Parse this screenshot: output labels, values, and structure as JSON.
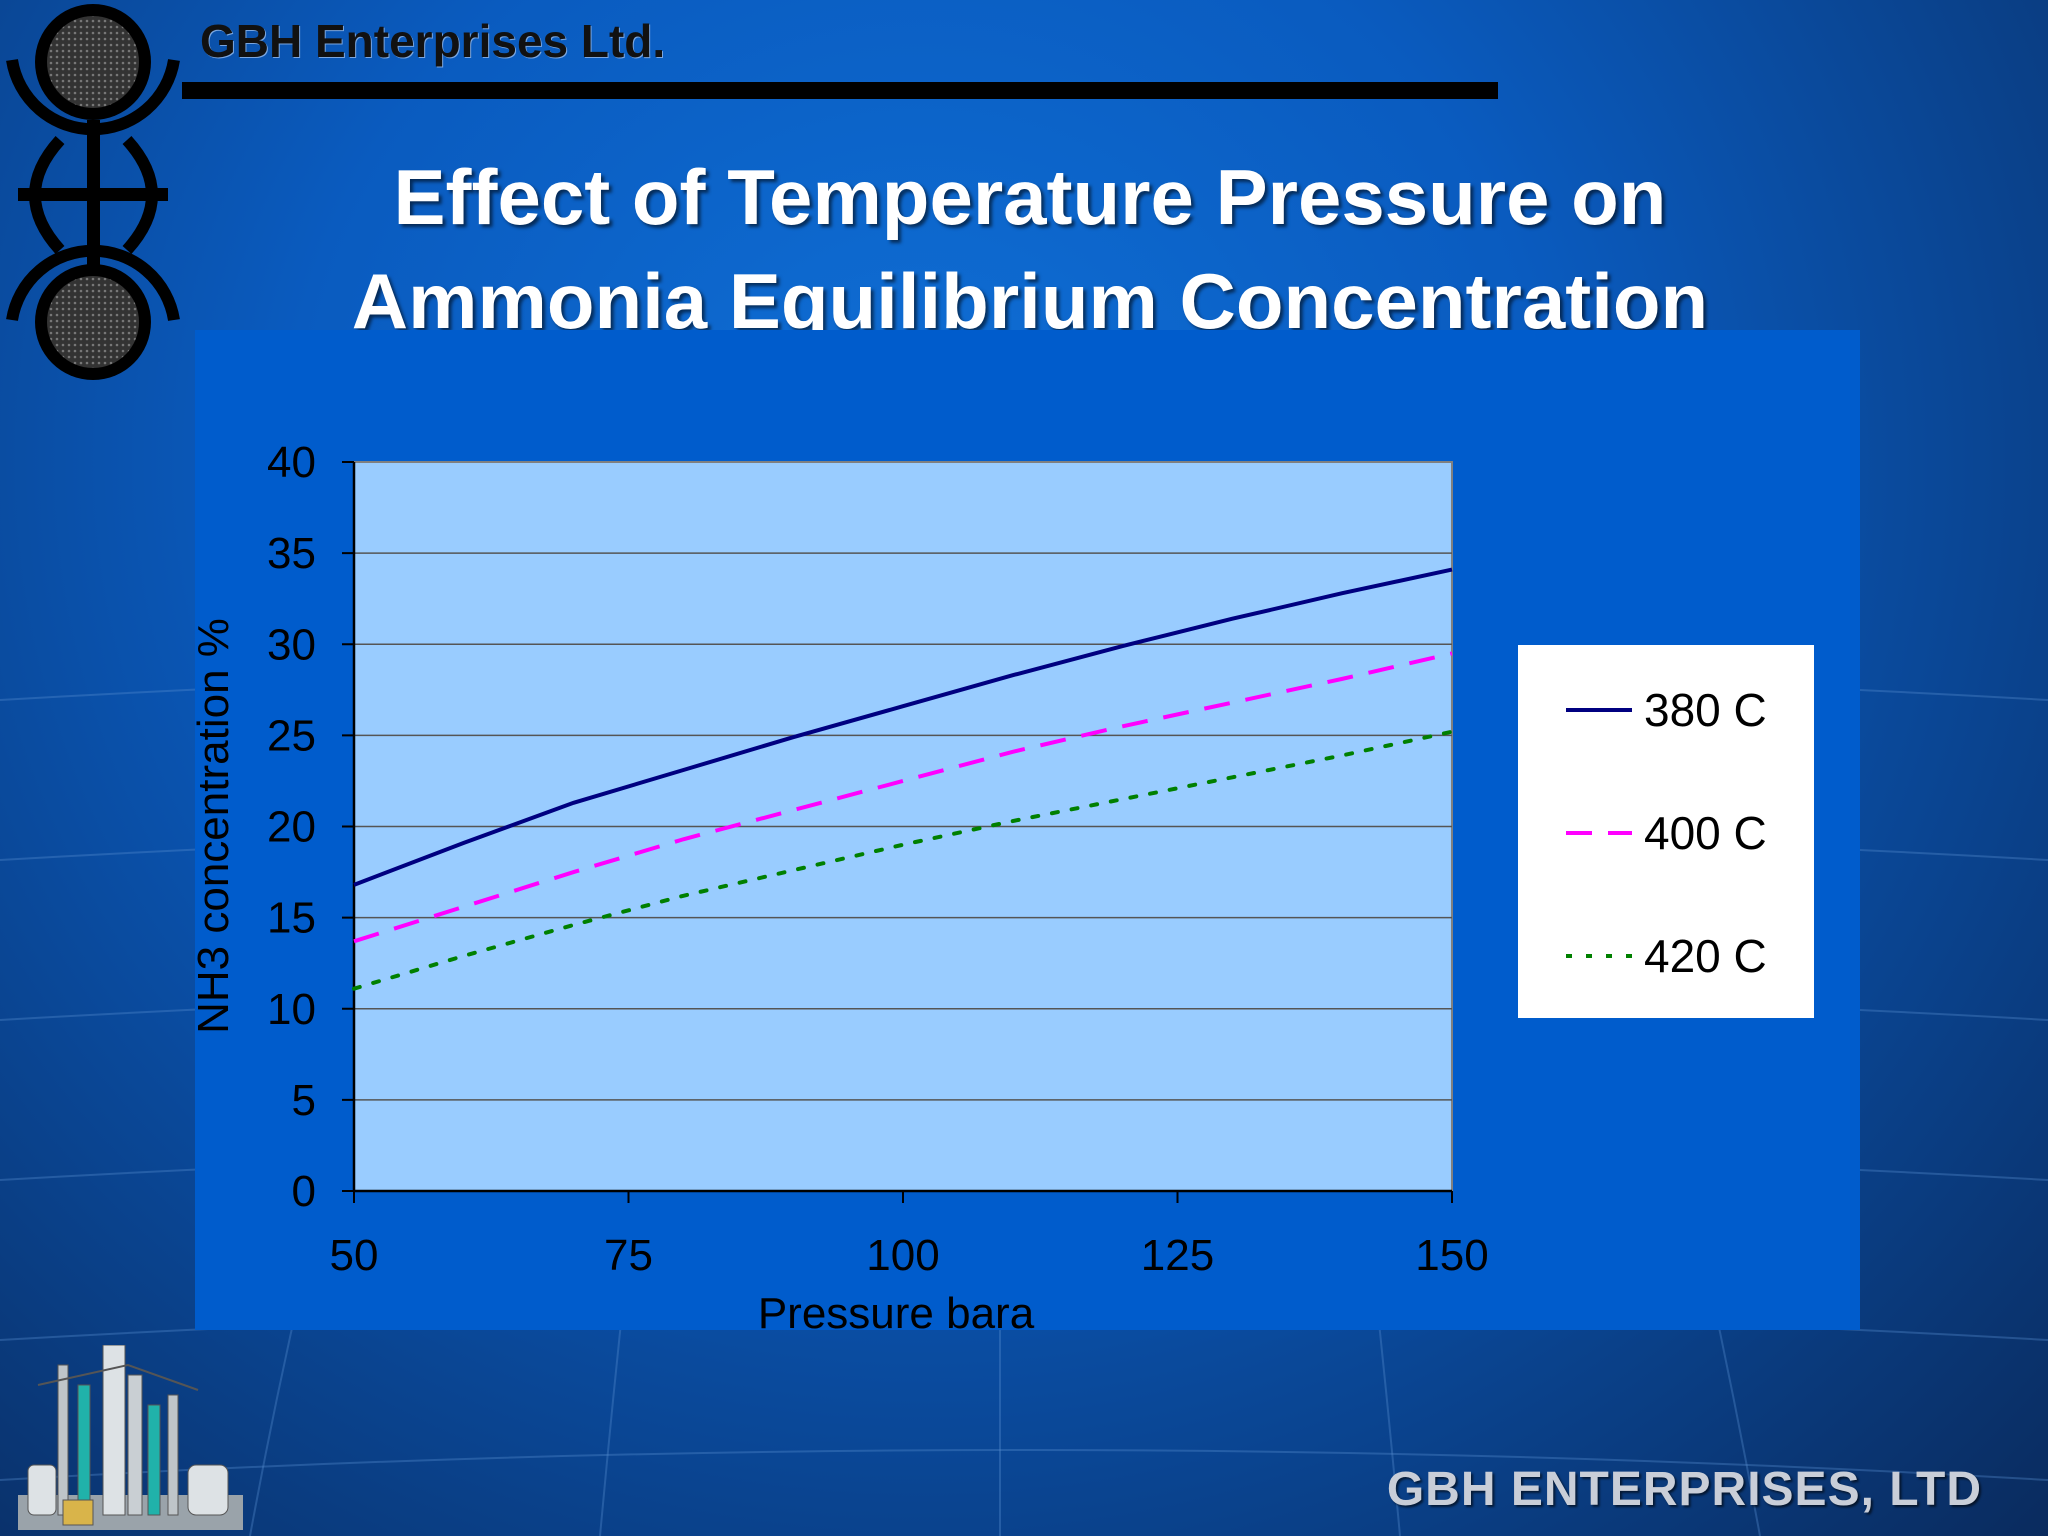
{
  "header": {
    "company": "GBH Enterprises Ltd.",
    "title_line1": "Effect of Temperature Pressure on",
    "title_line2": "Ammonia Equilibrium Concentration"
  },
  "footer": {
    "company": "GBH ENTERPRISES, LTD"
  },
  "logo": {
    "icon": "gbh-emblem-icon"
  },
  "decor": {
    "icon": "chemical-plant-icon"
  },
  "colors": {
    "background": "#0a5bbf",
    "chart_area": "#005ccc",
    "plot_area": "#99ccff",
    "series_380": "#000080",
    "series_400": "#ff00ff",
    "series_420": "#008000"
  },
  "chart_data": {
    "type": "line",
    "title": "",
    "xlabel": "Pressure bara",
    "ylabel": "NH3 concentration %",
    "x": [
      50,
      60,
      70,
      80,
      90,
      100,
      110,
      120,
      130,
      140,
      150
    ],
    "xlim": [
      50,
      150
    ],
    "ylim": [
      0,
      40
    ],
    "x_ticks": [
      "50",
      "75",
      "100",
      "125",
      "150"
    ],
    "y_ticks": [
      "0",
      "5",
      "10",
      "15",
      "20",
      "25",
      "30",
      "35",
      "40"
    ],
    "grid": "horizontal",
    "legend_position": "right",
    "series": [
      {
        "name": "380 C",
        "style": "solid",
        "color": "#000080",
        "values": [
          16.8,
          19.1,
          21.3,
          23.1,
          24.9,
          26.6,
          28.3,
          29.9,
          31.4,
          32.8,
          34.1
        ]
      },
      {
        "name": "400 C",
        "style": "dashed",
        "color": "#ff00ff",
        "values": [
          13.7,
          15.6,
          17.5,
          19.3,
          20.9,
          22.5,
          24.1,
          25.5,
          26.8,
          28.1,
          29.5
        ]
      },
      {
        "name": "420 C",
        "style": "dotted",
        "color": "#008000",
        "values": [
          11.1,
          12.9,
          14.6,
          16.2,
          17.6,
          19.0,
          20.3,
          21.5,
          22.7,
          23.9,
          25.2
        ]
      }
    ]
  }
}
